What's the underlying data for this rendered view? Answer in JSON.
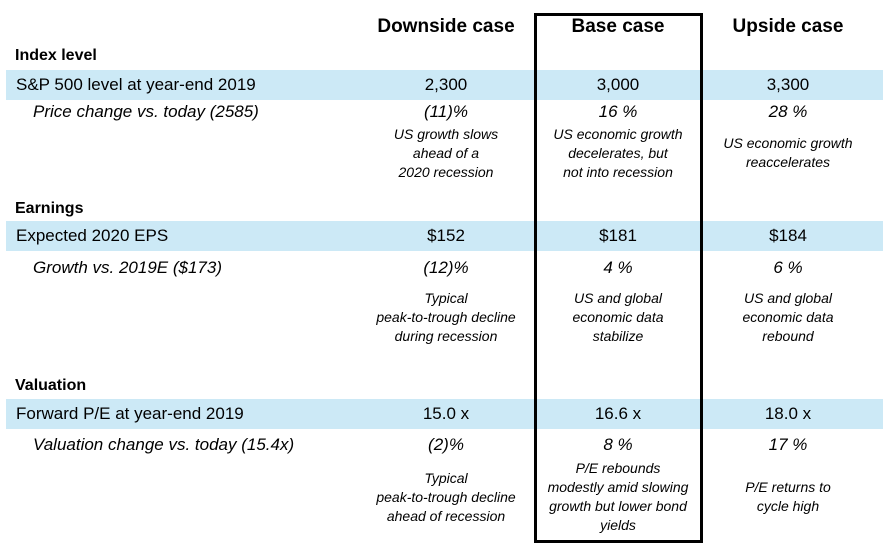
{
  "headers": {
    "downside": "Downside case",
    "base": "Base case",
    "upside": "Upside case"
  },
  "sections": {
    "index": {
      "title": "Index level",
      "main_label": "S&P 500 level at year-end 2019",
      "main_values": [
        "2,300",
        "3,000",
        "3,300"
      ],
      "sub_label": "Price change vs. today (2585)",
      "sub_values": [
        "(11)%",
        "16 %",
        "28 %"
      ],
      "notes": [
        "US growth slows\nahead of a\n2020 recession",
        "US economic growth\ndecelerates, but\nnot into recession",
        "US economic growth\nreaccelerates"
      ]
    },
    "earnings": {
      "title": "Earnings",
      "main_label": "Expected 2020 EPS",
      "main_values": [
        "$152",
        "$181",
        "$184"
      ],
      "sub_label": "Growth vs. 2019E ($173)",
      "sub_values": [
        "(12)%",
        "4 %",
        "6 %"
      ],
      "notes": [
        "Typical\npeak-to-trough decline\nduring recession",
        "US and global\neconomic data\nstabilize",
        "US and global\neconomic data\nrebound"
      ]
    },
    "valuation": {
      "title": "Valuation",
      "main_label": "Forward P/E at year-end 2019",
      "main_values": [
        "15.0 x",
        "16.6 x",
        "18.0 x"
      ],
      "sub_label": "Valuation change vs. today (15.4x)",
      "sub_values": [
        "(2)%",
        "8 %",
        "17 %"
      ],
      "notes": [
        "Typical\npeak-to-trough decline\nahead of recession",
        "P/E rebounds\nmodestly amid slowing\ngrowth but lower bond\nyields",
        "P/E returns to\ncycle high"
      ]
    }
  },
  "colors": {
    "band": "#cce9f6",
    "text": "#000000",
    "base_box_border": "#000000"
  }
}
